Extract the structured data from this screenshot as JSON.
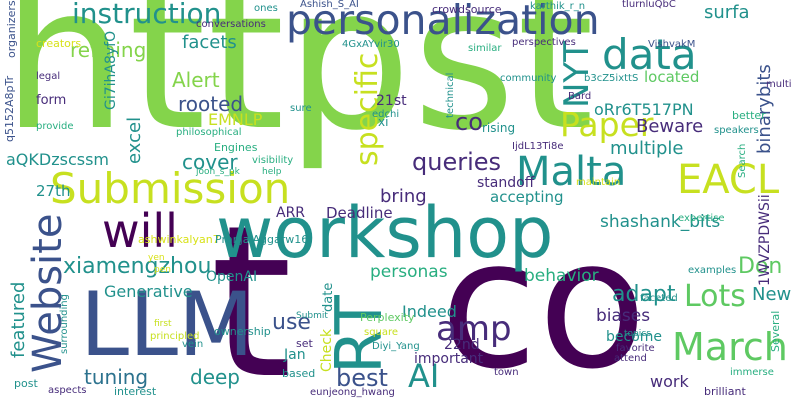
{
  "word_cloud": {
    "words": [
      "httpst",
      "co",
      "t",
      "workshop",
      "personalization",
      "LLM",
      "Submission",
      "will",
      "Website",
      "RT",
      "data",
      "Malta",
      "EACL",
      "instruction",
      "Paper",
      "March",
      "amp",
      "AI",
      "NYT",
      "specific",
      "queries",
      "xiamengzhou",
      "refining",
      "facets",
      "Alert",
      "rooted",
      "Lots",
      "tuning",
      "best",
      "surfa",
      "binarybits",
      "shashank_bits",
      "multiple",
      "Beware",
      "co",
      "located",
      "oRr6T517PN",
      "EMNLP",
      "excel",
      "cover",
      "aQKDzscssm",
      "27th",
      "ARR",
      "Deadline",
      "bring",
      "accepting",
      "standoff",
      "Don",
      "adapt",
      "behavior",
      "personas",
      "Indeed",
      "featured",
      "Generative",
      "OpenAI",
      "use",
      "deep",
      "22nd",
      "Jan",
      "biases",
      "New",
      "become",
      "work",
      "important",
      "date",
      "Check",
      "set",
      "Submit",
      "Perplexity",
      "21st",
      "xi",
      "Gi7ihA8yfO",
      "q5152A8pTr",
      "organizers",
      "creators",
      "legal",
      "form",
      "provide",
      "philosophical",
      "Engines",
      "visibility",
      "joon_s_pk",
      "help",
      "ashwinkalyan7",
      "PranjalAggarw16",
      "principled",
      "first",
      "square",
      "vein",
      "ownership",
      "based",
      "surrounding",
      "post",
      "aspects",
      "interest",
      "eunjeong_hwang",
      "Diyi_Yang",
      "town",
      "attend",
      "favorite",
      "topics",
      "faceted",
      "examples",
      "immerse",
      "brilliant",
      "Several",
      "Search",
      "expertise",
      "maintain",
      "speakers",
      "better",
      "multi",
      "IjdL13Ti8e",
      "technical",
      "rising",
      "Bard",
      "b3cZ5ixttS",
      "community",
      "similar",
      "perspectives",
      "crowdsource",
      "4GxAYvir30",
      "Ashish_S_AI",
      "conversations",
      "ones",
      "karthik_r_n",
      "tIurnluQbC",
      "VishvakM",
      "edchi",
      "sure",
      "1WVZPDWSii",
      "yen",
      "pen"
    ]
  }
}
